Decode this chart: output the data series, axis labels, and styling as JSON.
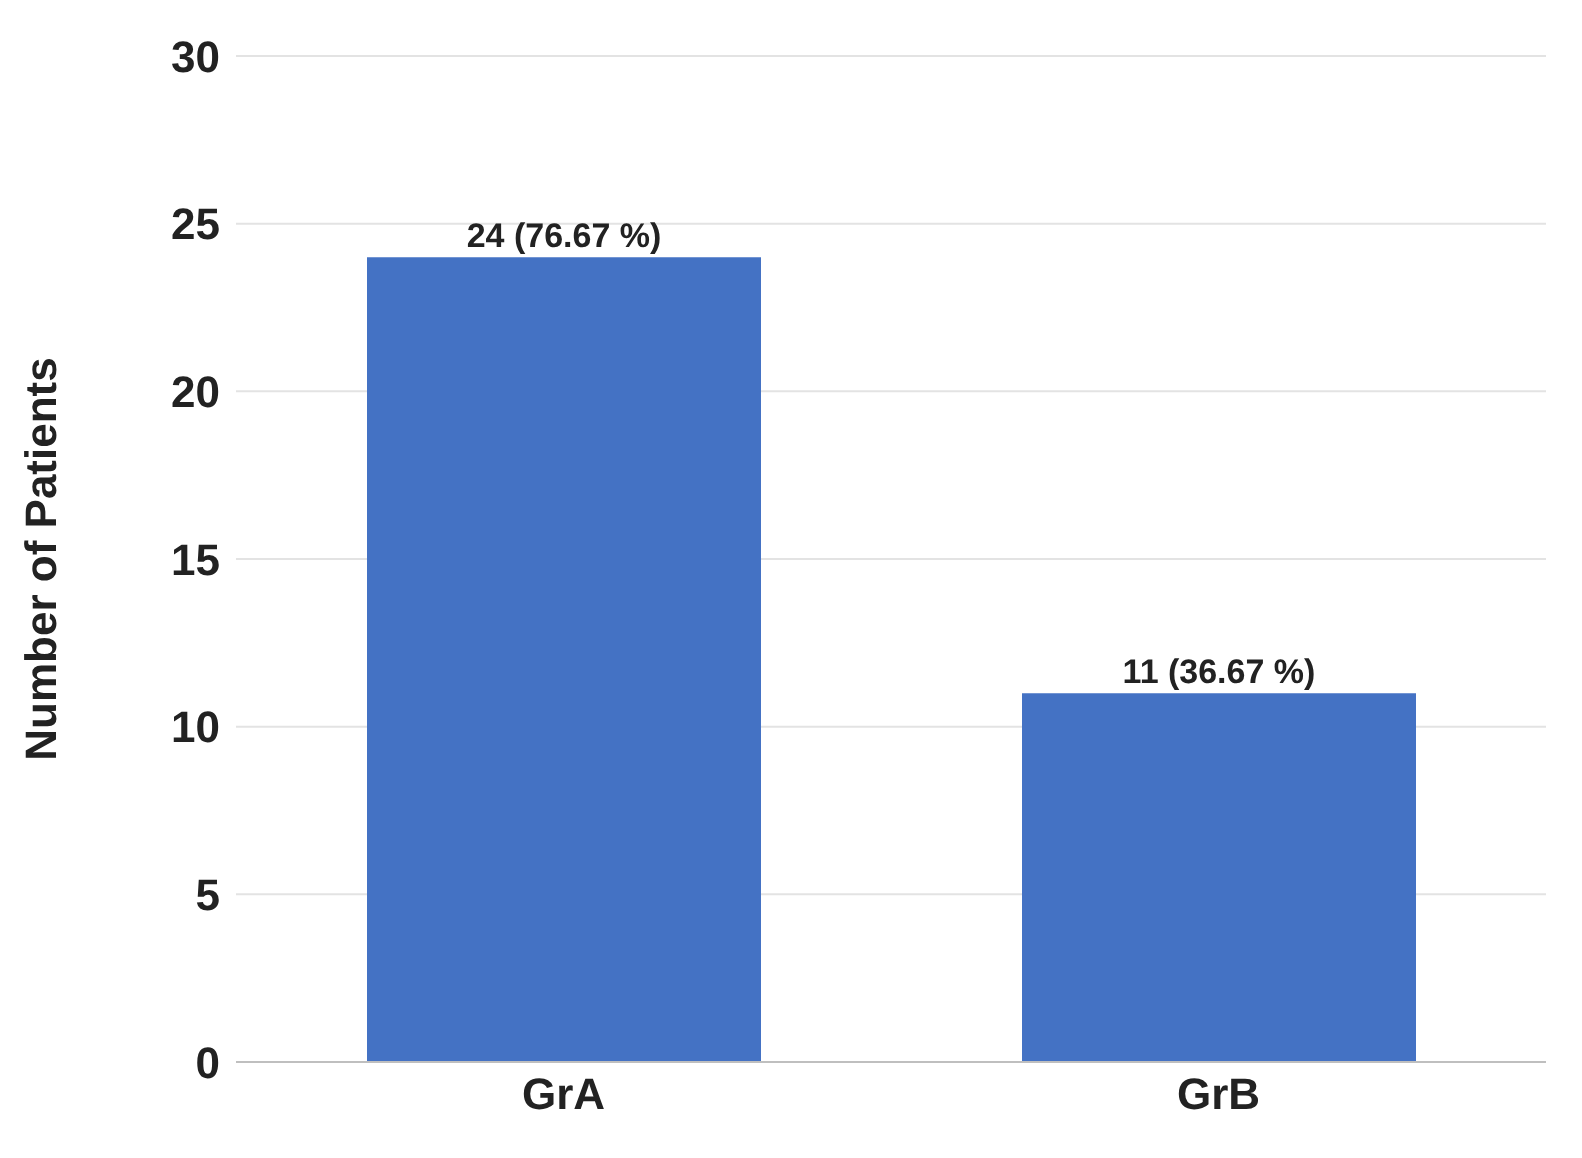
{
  "chart_data": {
    "type": "bar",
    "ylabel": "Number of Patients",
    "categories": [
      "GrA",
      "GrB"
    ],
    "values": [
      24,
      11
    ],
    "value_labels": [
      "24 (76.67 %)",
      "11 (36.67 %)"
    ],
    "color": "#4472c4",
    "ylim": [
      0,
      30
    ],
    "yticks": [
      0,
      5,
      10,
      15,
      20,
      25,
      30
    ],
    "grid": "y"
  }
}
